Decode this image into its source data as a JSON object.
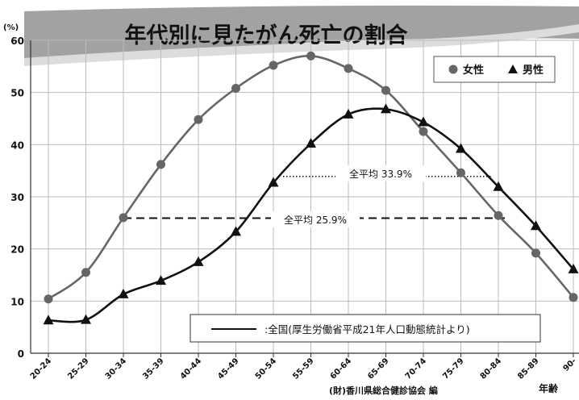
{
  "colors": {
    "female": "#666666",
    "male": "#111111",
    "banner": "#9a9a9a",
    "grid": "#bbbbbb"
  },
  "chart_data": {
    "type": "line",
    "title": "年代別に見たがん死亡の割合",
    "ylabel": "(%)",
    "xlabel": "年齢",
    "ylim": [
      0,
      60
    ],
    "yticks": [
      "0",
      "10",
      "20",
      "30",
      "40",
      "50",
      "60"
    ],
    "grid": true,
    "legend_position": "top-right",
    "categories": [
      "20-24",
      "25-29",
      "30-34",
      "35-39",
      "40-44",
      "45-49",
      "50-54",
      "55-59",
      "60-64",
      "65-69",
      "70-74",
      "75-79",
      "80-84",
      "85-89",
      "90-"
    ],
    "series": [
      {
        "name": "女性",
        "marker": "circle",
        "values": [
          10.4,
          15.5,
          26.0,
          36.2,
          44.8,
          50.8,
          55.2,
          57.0,
          54.6,
          50.4,
          42.5,
          34.6,
          26.4,
          19.2,
          10.7
        ]
      },
      {
        "name": "男性",
        "marker": "triangle",
        "values": [
          6.3,
          6.4,
          11.3,
          13.9,
          17.5,
          23.3,
          32.7,
          40.2,
          45.8,
          46.8,
          44.3,
          39.2,
          31.9,
          24.4,
          16.1
        ]
      }
    ],
    "annotations": [
      {
        "text": "全平均 33.9%",
        "value": 33.9,
        "style": "dotted"
      },
      {
        "text": "全平均 25.9%",
        "value": 25.9,
        "style": "dashed"
      }
    ],
    "note": ":全国(厚生労働省平成21年人口動態統計より)",
    "source": "(財)香川県総合健診協会 編"
  }
}
